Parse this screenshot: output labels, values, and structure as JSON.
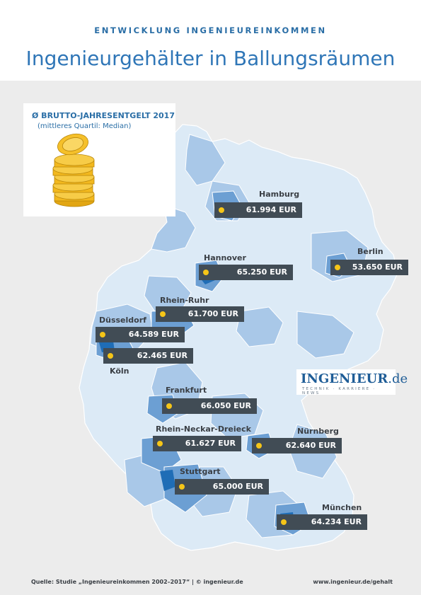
{
  "header": {
    "kicker": "ENTWICKLUNG INGENIEUREINKOMMEN",
    "title": "Ingenieurgehälter in Ballungsräumen"
  },
  "legend": {
    "title": "Ø  BRUTTO-JAHRESENTGELT 2017",
    "subtitle": "(mittleres Quartil: Median)",
    "icon": "coin-stack-icon"
  },
  "colors": {
    "region_light": "#dceaf6",
    "region_mid": "#a9c8e8",
    "region_dark": "#6c9fd3",
    "region_accent": "#1f6db6",
    "label_bg": "#414c55",
    "dot": "#f5c518"
  },
  "cities": [
    {
      "name": "Hamburg",
      "salary": "61.994 EUR"
    },
    {
      "name": "Berlin",
      "salary": "53.650 EUR"
    },
    {
      "name": "Hannover",
      "salary": "65.250 EUR"
    },
    {
      "name": "Rhein-Ruhr",
      "salary": "61.700 EUR"
    },
    {
      "name": "Düsseldorf",
      "salary": "64.589 EUR"
    },
    {
      "name": "Köln",
      "salary": "62.465 EUR"
    },
    {
      "name": "Frankfurt",
      "salary": "66.050 EUR"
    },
    {
      "name": "Rhein-Neckar-Dreieck",
      "salary": "61.627 EUR"
    },
    {
      "name": "Nürnberg",
      "salary": "62.640 EUR"
    },
    {
      "name": "Stuttgart",
      "salary": "65.000 EUR"
    },
    {
      "name": "München",
      "salary": "64.234 EUR"
    }
  ],
  "logo": {
    "word": "INGENIEUR",
    "suffix": ".de",
    "tagline": "TECHNIK · KARRIERE · NEWS"
  },
  "footer": {
    "source": "Quelle: Studie „Ingenieureinkommen 2002–2017“ | © ingenieur.de",
    "url": "www.ingenieur.de/gehalt"
  }
}
